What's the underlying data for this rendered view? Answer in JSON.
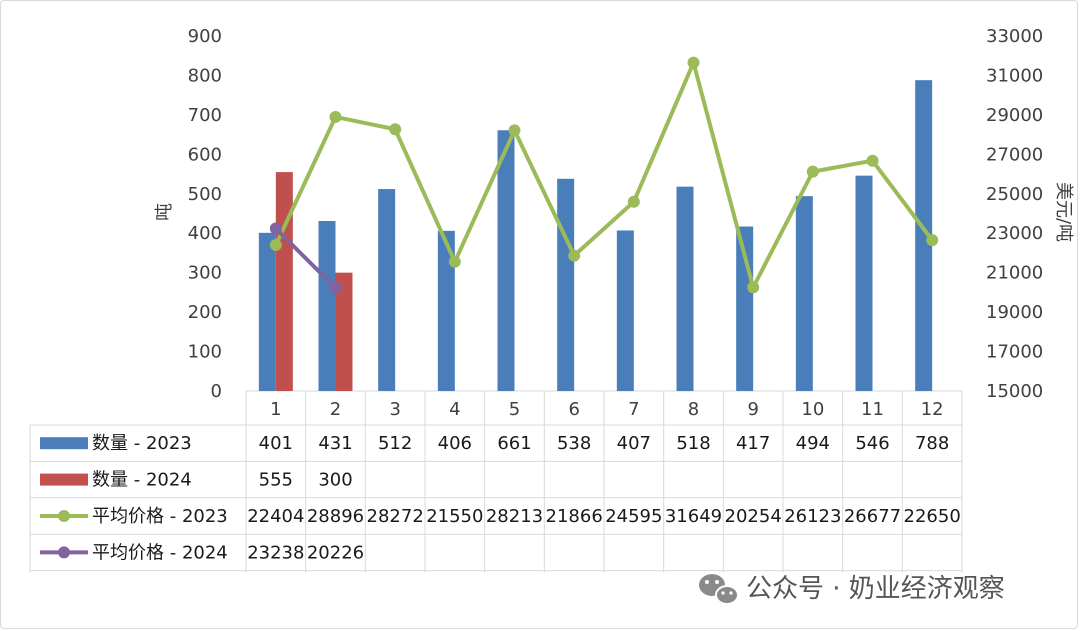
{
  "chart_data": {
    "type": "bar",
    "categories": [
      "1",
      "2",
      "3",
      "4",
      "5",
      "6",
      "7",
      "8",
      "9",
      "10",
      "11",
      "12"
    ],
    "series": [
      {
        "name": "数量 - 2023",
        "kind": "bar",
        "axis": "left",
        "color": "#4a7ebb",
        "values": [
          401,
          431,
          512,
          406,
          661,
          538,
          407,
          518,
          417,
          494,
          546,
          788
        ]
      },
      {
        "name": "数量 - 2024",
        "kind": "bar",
        "axis": "left",
        "color": "#c0504d",
        "values": [
          555,
          300,
          null,
          null,
          null,
          null,
          null,
          null,
          null,
          null,
          null,
          null
        ]
      },
      {
        "name": "平均价格 - 2023",
        "kind": "line",
        "axis": "right",
        "color": "#9bbb59",
        "values": [
          22404,
          28896,
          28272,
          21550,
          28213,
          21866,
          24595,
          31649,
          20254,
          26123,
          26677,
          22650
        ]
      },
      {
        "name": "平均价格 - 2024",
        "kind": "line",
        "axis": "right",
        "color": "#8064a2",
        "values": [
          23238,
          20226,
          null,
          null,
          null,
          null,
          null,
          null,
          null,
          null,
          null,
          null
        ]
      }
    ],
    "ylabel": "吨",
    "y2label": "美元/吨",
    "ylim": [
      0,
      900
    ],
    "y2lim": [
      15000,
      33000
    ],
    "yticks": [
      "0",
      "100",
      "200",
      "300",
      "400",
      "500",
      "600",
      "700",
      "800",
      "900"
    ],
    "y2ticks": [
      "15000",
      "17000",
      "19000",
      "21000",
      "23000",
      "25000",
      "27000",
      "29000",
      "31000",
      "33000"
    ],
    "grid": false,
    "legend": "data-table"
  },
  "watermark": {
    "text": "公众号 · 奶业经济观察",
    "icon": "wechat-icon"
  }
}
